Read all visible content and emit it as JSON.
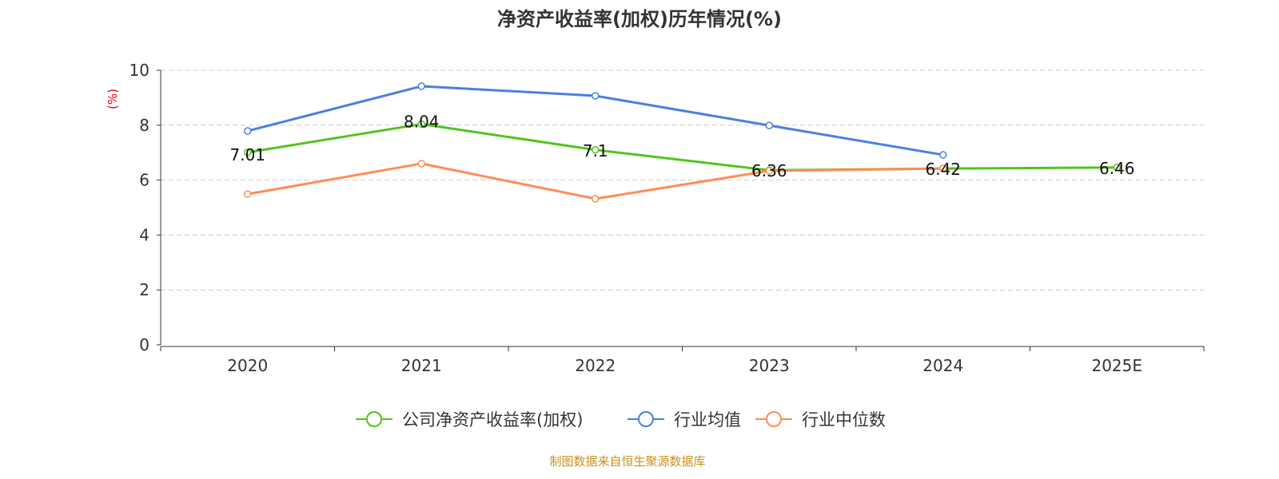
{
  "chart_data": {
    "type": "line",
    "title": "净资产收益率(加权)历年情况(%)",
    "ylabel": "(%)",
    "categories": [
      "2020",
      "2021",
      "2022",
      "2023",
      "2024",
      "2025E"
    ],
    "ylim": [
      0,
      10
    ],
    "yticks": [
      0,
      2,
      4,
      6,
      8,
      10
    ],
    "grid": true,
    "legend_position": "bottom",
    "series": [
      {
        "name": "公司净资产收益率(加权)",
        "color": "#52c41a",
        "values": [
          7.01,
          8.04,
          7.1,
          6.36,
          6.42,
          6.46
        ],
        "labels": [
          "7.01",
          "8.04",
          "7.1",
          "6.36",
          "6.42",
          "6.46"
        ]
      },
      {
        "name": "行业均值",
        "color": "#4a7fe0",
        "values": [
          7.79,
          9.42,
          9.07,
          7.99,
          6.92,
          null
        ]
      },
      {
        "name": "行业中位数",
        "color": "#ff8c55",
        "values": [
          5.49,
          6.6,
          5.32,
          6.34,
          6.42,
          null
        ]
      }
    ]
  },
  "footer": {
    "source": "制图数据来自恒生聚源数据库",
    "color": "#c8901a"
  }
}
